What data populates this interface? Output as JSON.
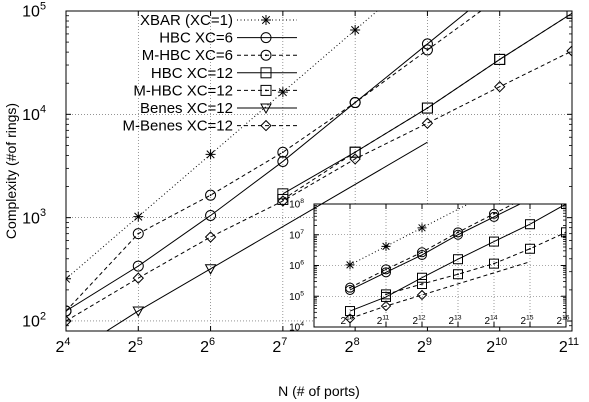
{
  "chart_data": [
    {
      "type": "line",
      "xlabel": "N (# of ports)",
      "ylabel": "Complexity (#of rings)",
      "x_scale": "log2",
      "y_scale": "log10",
      "xlim": [
        16,
        2048
      ],
      "ylim": [
        80,
        100000
      ],
      "x_ticks": [
        {
          "value": 16,
          "base": "2",
          "exp": "4"
        },
        {
          "value": 32,
          "base": "2",
          "exp": "5"
        },
        {
          "value": 64,
          "base": "2",
          "exp": "6"
        },
        {
          "value": 128,
          "base": "2",
          "exp": "7"
        },
        {
          "value": 256,
          "base": "2",
          "exp": "8"
        },
        {
          "value": 512,
          "base": "2",
          "exp": "9"
        },
        {
          "value": 1024,
          "base": "2",
          "exp": "10"
        },
        {
          "value": 2048,
          "base": "2",
          "exp": "11"
        }
      ],
      "y_ticks": [
        {
          "value": 100,
          "base": "10",
          "exp": "2"
        },
        {
          "value": 1000,
          "base": "10",
          "exp": "3"
        },
        {
          "value": 10000,
          "base": "10",
          "exp": "4"
        },
        {
          "value": 100000,
          "base": "10",
          "exp": "5"
        }
      ],
      "grid": true,
      "legend_position": "top-left",
      "series": [
        {
          "name": "XBAR (XC=1)",
          "marker": "star",
          "line": "dotted",
          "x": [
            16,
            32,
            64,
            128,
            256
          ],
          "y": [
            256,
            1024,
            4096,
            16384,
            65536
          ]
        },
        {
          "name": "HBC XC=6",
          "marker": "circle",
          "line": "solid",
          "x": [
            16,
            32,
            64,
            128,
            256,
            512
          ],
          "y": [
            125,
            340,
            1050,
            3500,
            13000,
            48000
          ]
        },
        {
          "name": "M-HBC XC=6",
          "marker": "dotcircle",
          "line": "dashed",
          "x": [
            16,
            32,
            64,
            128,
            256,
            512
          ],
          "y": [
            125,
            700,
            1650,
            4300,
            13000,
            42000
          ]
        },
        {
          "name": "HBC XC=12",
          "marker": "square",
          "line": "solid",
          "x": [
            128,
            256,
            512,
            1024,
            2048
          ],
          "y": [
            1700,
            4300,
            11500,
            34000,
            95000
          ]
        },
        {
          "name": "M-HBC XC=12",
          "marker": "dotsquare",
          "line": "dashed",
          "x": [
            128,
            256,
            512,
            1024,
            2048
          ],
          "y": [
            1500,
            4300,
            11500,
            34000,
            95000
          ]
        },
        {
          "name": "Benes XC=12",
          "marker": "triangle-down",
          "line": "solid",
          "x": [
            16,
            32,
            64
          ],
          "y": [
            45,
            125,
            320
          ]
        },
        {
          "name": "M-Benes XC=12",
          "marker": "diamond",
          "line": "dashed",
          "x": [
            16,
            32,
            64,
            128,
            256,
            512,
            1024,
            2048
          ],
          "y": [
            100,
            260,
            650,
            1450,
            3700,
            8200,
            18500,
            41000
          ]
        }
      ]
    },
    {
      "type": "line",
      "note": "inset",
      "x_scale": "log2",
      "y_scale": "log10",
      "xlim": [
        512,
        65536
      ],
      "ylim": [
        10000,
        100000000
      ],
      "x_ticks": [
        {
          "value": 1024,
          "base": "2",
          "exp": "10"
        },
        {
          "value": 2048,
          "base": "2",
          "exp": "11"
        },
        {
          "value": 4096,
          "base": "2",
          "exp": "12"
        },
        {
          "value": 8192,
          "base": "2",
          "exp": "13"
        },
        {
          "value": 16384,
          "base": "2",
          "exp": "14"
        },
        {
          "value": 32768,
          "base": "2",
          "exp": "15"
        },
        {
          "value": 65536,
          "base": "2",
          "exp": "16"
        }
      ],
      "y_ticks": [
        {
          "value": 10000,
          "base": "10",
          "exp": "4"
        },
        {
          "value": 100000,
          "base": "10",
          "exp": "5"
        },
        {
          "value": 1000000,
          "base": "10",
          "exp": "6"
        },
        {
          "value": 10000000,
          "base": "10",
          "exp": "7"
        },
        {
          "value": 100000000,
          "base": "10",
          "exp": "8"
        }
      ],
      "grid": true,
      "series": [
        {
          "marker": "star",
          "line": "dotted",
          "x": [
            1024,
            2048,
            4096
          ],
          "y": [
            1050000,
            4200000,
            16800000
          ]
        },
        {
          "marker": "circle",
          "line": "solid",
          "x": [
            1024,
            2048,
            4096,
            8192,
            16384
          ],
          "y": [
            160000,
            600000,
            2200000,
            10000000,
            38000000
          ]
        },
        {
          "marker": "dotcircle",
          "line": "dashed",
          "x": [
            1024,
            2048,
            4096,
            8192,
            16384
          ],
          "y": [
            190000,
            750000,
            2700000,
            12000000,
            48000000
          ]
        },
        {
          "marker": "square",
          "line": "solid",
          "x": [
            1024,
            2048,
            4096,
            8192,
            16384,
            32768,
            65536
          ],
          "y": [
            33000,
            95000,
            400000,
            1600000,
            6000000,
            22000000,
            100000000
          ]
        },
        {
          "marker": "dotsquare",
          "line": "dashed",
          "x": [
            2048,
            4096,
            8192,
            16384,
            32768,
            65536
          ],
          "y": [
            115000,
            250000,
            520000,
            1150000,
            3500000,
            12000000
          ]
        },
        {
          "marker": "diamond",
          "line": "dashed",
          "x": [
            1024,
            2048,
            4096
          ],
          "y": [
            19000,
            48000,
            110000
          ]
        }
      ]
    }
  ]
}
